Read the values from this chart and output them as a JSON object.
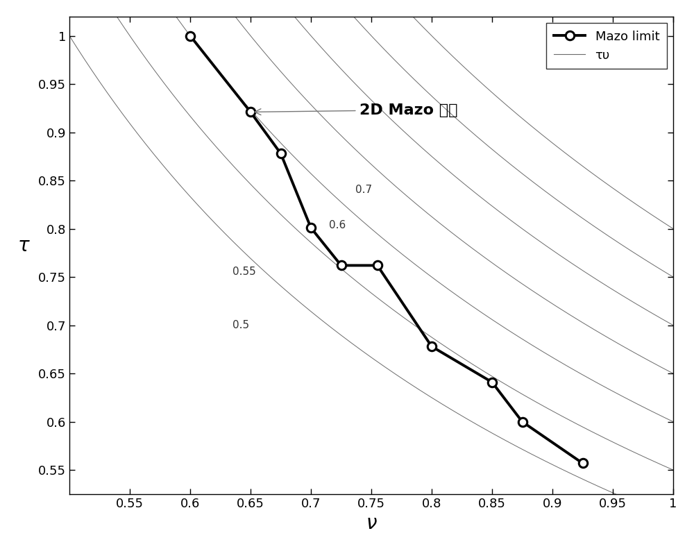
{
  "mazo_x": [
    0.6,
    0.65,
    0.675,
    0.7,
    0.725,
    0.755,
    0.8,
    0.85,
    0.875,
    0.925
  ],
  "mazo_y": [
    1.0,
    0.921,
    0.878,
    0.801,
    0.762,
    0.762,
    0.678,
    0.641,
    0.6,
    0.557
  ],
  "contour_values": [
    0.5,
    0.55,
    0.6,
    0.65,
    0.7,
    0.75,
    0.8
  ],
  "xlim": [
    0.5,
    1.0
  ],
  "ylim": [
    0.525,
    1.02
  ],
  "xticks": [
    0.55,
    0.6,
    0.65,
    0.7,
    0.75,
    0.8,
    0.85,
    0.9,
    0.95,
    1.0
  ],
  "yticks": [
    0.55,
    0.6,
    0.65,
    0.7,
    0.75,
    0.8,
    0.85,
    0.9,
    0.95,
    1.0
  ],
  "xlabel": "ν",
  "ylabel": "τ",
  "annotation_text": "2D Mazo 极限",
  "background_color": "#ffffff",
  "mazo_color": "#000000",
  "contour_color": "#6a6a6a",
  "contour_linewidth": 0.7
}
